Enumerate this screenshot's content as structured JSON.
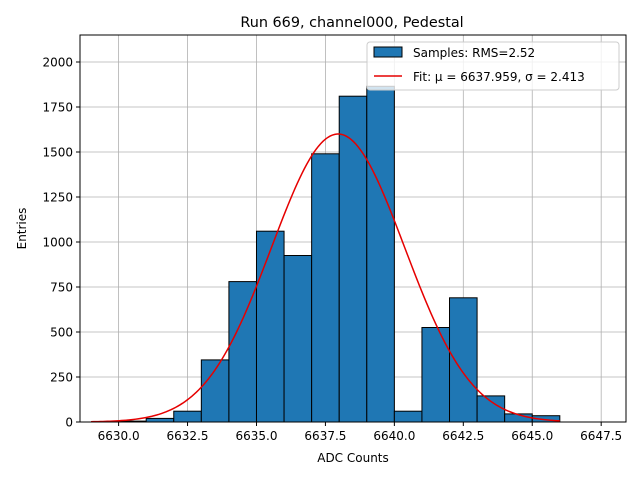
{
  "chart_data": {
    "type": "bar",
    "title": "Run 669, channel000, Pedestal",
    "xlabel": "ADC Counts",
    "ylabel": "Entries",
    "xlim": [
      6628.6,
      6648.4
    ],
    "ylim": [
      0,
      2150
    ],
    "x_ticks": [
      6630.0,
      6632.5,
      6635.0,
      6637.5,
      6640.0,
      6642.5,
      6645.0,
      6647.5
    ],
    "x_tick_labels": [
      "6630.0",
      "6632.5",
      "6635.0",
      "6637.5",
      "6640.0",
      "6642.5",
      "6645.0",
      "6647.5"
    ],
    "y_ticks": [
      0,
      250,
      500,
      750,
      1000,
      1250,
      1500,
      1750,
      2000
    ],
    "y_tick_labels": [
      "0",
      "250",
      "500",
      "750",
      "1000",
      "1250",
      "1500",
      "1750",
      "2000"
    ],
    "grid": true,
    "legend_position": "top-right",
    "colors": {
      "bar_fill": "#1f77b4",
      "bar_edge": "#000000",
      "fit_line": "#e60000",
      "grid": "#b0b0b0"
    },
    "histogram": {
      "name": "Samples: RMS=2.52",
      "bin_edges": [
        6630,
        6631,
        6632,
        6633,
        6634,
        6635,
        6636,
        6637,
        6638,
        6639,
        6640,
        6641,
        6642,
        6643,
        6644,
        6645,
        6646
      ],
      "counts": [
        5,
        20,
        60,
        345,
        780,
        1060,
        925,
        1490,
        1810,
        1865,
        60,
        525,
        690,
        145,
        45,
        35
      ]
    },
    "fit": {
      "name": "Fit: μ = 6637.959, σ = 2.413",
      "type": "gaussian",
      "mu": 6637.959,
      "sigma": 2.413,
      "amplitude": 1600,
      "x_range": [
        6629,
        6646
      ]
    }
  }
}
